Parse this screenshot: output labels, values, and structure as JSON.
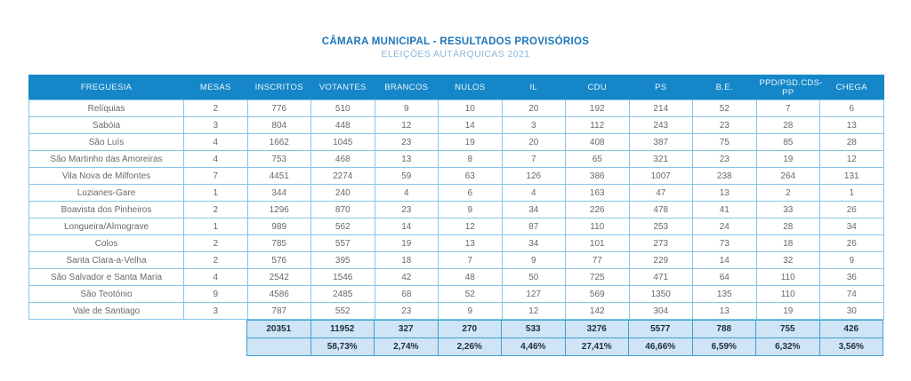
{
  "header": {
    "title": "CÂMARA MUNICIPAL - RESULTADOS PROVISÓRIOS",
    "subtitle": "ELEIÇÕES AUTÁRQUICAS 2021"
  },
  "colors": {
    "header_bg": "#1587c8",
    "title_blue": "#1c76ba",
    "subtitle_blue": "#8db8da",
    "grid_border": "#86c4e8",
    "totals_bg": "#cfe4f5",
    "totals_border": "#3f9fd6",
    "body_text": "#68696c",
    "totals_text": "#1d3140"
  },
  "chart_data": {
    "type": "table",
    "title": "CÂMARA MUNICIPAL - RESULTADOS PROVISÓRIOS",
    "subtitle": "ELEIÇÕES AUTÁRQUICAS 2021",
    "columns": [
      "FREGUESIA",
      "MESAS",
      "INSCRITOS",
      "VOTANTES",
      "BRANCOS",
      "NULOS",
      "IL",
      "CDU",
      "PS",
      "B.E.",
      "PPD/PSD.CDS-PP",
      "CHEGA"
    ],
    "rows": [
      [
        "Relíquias",
        "2",
        "776",
        "510",
        "9",
        "10",
        "20",
        "192",
        "214",
        "52",
        "7",
        "6"
      ],
      [
        "Sabóia",
        "3",
        "804",
        "448",
        "12",
        "14",
        "3",
        "112",
        "243",
        "23",
        "28",
        "13"
      ],
      [
        "São Luís",
        "4",
        "1662",
        "1045",
        "23",
        "19",
        "20",
        "408",
        "387",
        "75",
        "85",
        "28"
      ],
      [
        "São Martinho das Amoreiras",
        "4",
        "753",
        "468",
        "13",
        "8",
        "7",
        "65",
        "321",
        "23",
        "19",
        "12"
      ],
      [
        "Vila Nova de Milfontes",
        "7",
        "4451",
        "2274",
        "59",
        "63",
        "126",
        "386",
        "1007",
        "238",
        "264",
        "131"
      ],
      [
        "Luzianes-Gare",
        "1",
        "344",
        "240",
        "4",
        "6",
        "4",
        "163",
        "47",
        "13",
        "2",
        "1"
      ],
      [
        "Boavista dos Pinheiros",
        "2",
        "1296",
        "870",
        "23",
        "9",
        "34",
        "226",
        "478",
        "41",
        "33",
        "26"
      ],
      [
        "Longueira/Almograve",
        "1",
        "989",
        "562",
        "14",
        "12",
        "87",
        "110",
        "253",
        "24",
        "28",
        "34"
      ],
      [
        "Colos",
        "2",
        "785",
        "557",
        "19",
        "13",
        "34",
        "101",
        "273",
        "73",
        "18",
        "26"
      ],
      [
        "Santa Clara-a-Velha",
        "2",
        "576",
        "395",
        "18",
        "7",
        "9",
        "77",
        "229",
        "14",
        "32",
        "9"
      ],
      [
        "São Salvador e Santa Maria",
        "4",
        "2542",
        "1546",
        "42",
        "48",
        "50",
        "725",
        "471",
        "64",
        "110",
        "36"
      ],
      [
        "São Teotónio",
        "9",
        "4586",
        "2485",
        "68",
        "52",
        "127",
        "569",
        "1350",
        "135",
        "110",
        "74"
      ],
      [
        "Vale de Santiago",
        "3",
        "787",
        "552",
        "23",
        "9",
        "12",
        "142",
        "304",
        "13",
        "19",
        "30"
      ]
    ],
    "totals": [
      "20351",
      "11952",
      "327",
      "270",
      "533",
      "3276",
      "5577",
      "788",
      "755",
      "426"
    ],
    "percentages": [
      "",
      "58,73%",
      "2,74%",
      "2,26%",
      "4,46%",
      "27,41%",
      "46,66%",
      "6,59%",
      "6,32%",
      "3,56%"
    ]
  }
}
